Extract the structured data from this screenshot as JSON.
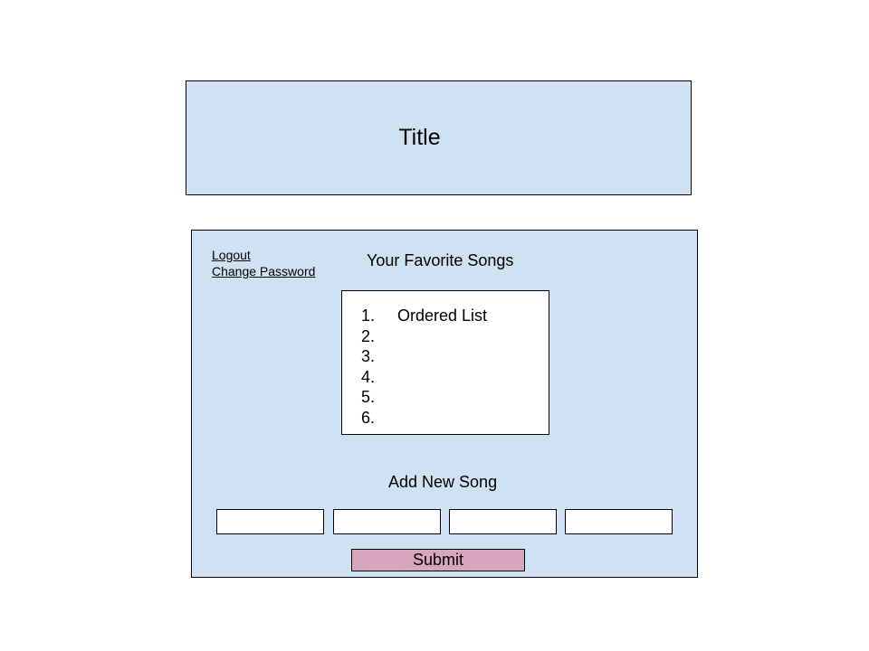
{
  "header": {
    "title": "Title"
  },
  "account": {
    "logout_label": "Logout",
    "change_password_label": "Change Password"
  },
  "favorites": {
    "heading": "Your Favorite Songs",
    "items": [
      {
        "number": "1.",
        "text": "Ordered List"
      },
      {
        "number": "2.",
        "text": ""
      },
      {
        "number": "3.",
        "text": ""
      },
      {
        "number": "4.",
        "text": ""
      },
      {
        "number": "5.",
        "text": ""
      },
      {
        "number": "6.",
        "text": ""
      }
    ]
  },
  "add_song": {
    "heading": "Add New Song",
    "fields": [
      {
        "value": ""
      },
      {
        "value": ""
      },
      {
        "value": ""
      },
      {
        "value": ""
      }
    ],
    "submit_label": "Submit"
  },
  "colors": {
    "panel_background": "#cfe2f3",
    "submit_background": "#d5a6bd",
    "border": "#000000"
  }
}
